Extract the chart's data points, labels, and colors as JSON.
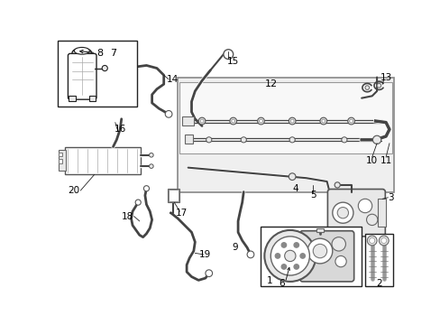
{
  "bg_color": "#ffffff",
  "lc": "#222222",
  "gray_light": "#e8e8e8",
  "gray_mid": "#aaaaaa",
  "gray_dark": "#555555"
}
